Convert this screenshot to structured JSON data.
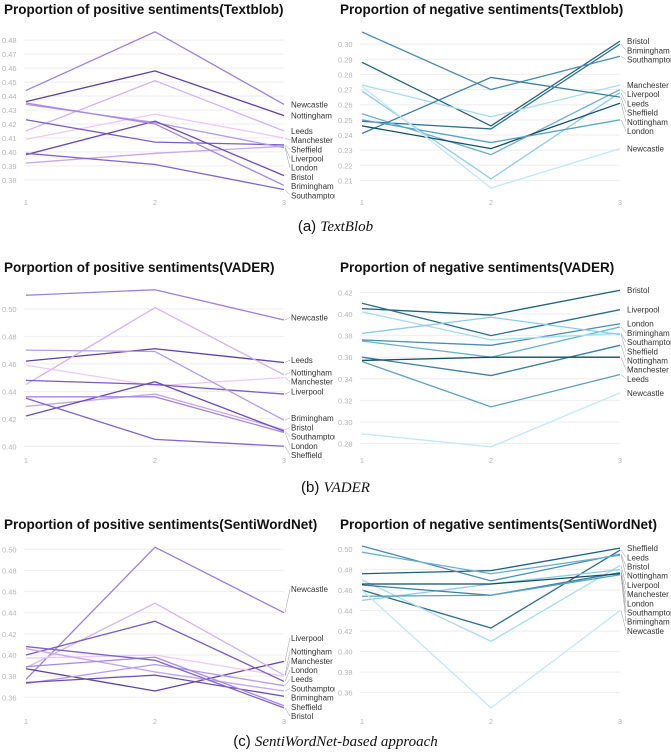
{
  "captions": [
    {
      "tag": "(a)",
      "name": "TextBlob"
    },
    {
      "tag": "(b)",
      "name": "VADER"
    },
    {
      "tag": "(c)",
      "name": "SentiWordNet-based approach"
    }
  ],
  "palettes": {
    "positive": [
      "#9b7fe0",
      "#5e3fa6",
      "#d4b2f6",
      "#efc9f5",
      "#7a5cc9",
      "#b49bee",
      "#c6a6f0",
      "#6b4bb8",
      "#a585e8",
      "#8063cf"
    ],
    "negative": [
      "#1e5f7a",
      "#2c6e8e",
      "#4a8db0",
      "#6ab0d0",
      "#a8dcf0",
      "#8ccbe8",
      "#3b7fa0",
      "#0f4d66",
      "#5aa0c0",
      "#bfe8f7"
    ]
  },
  "chart_data": [
    {
      "type": "line",
      "title": "Proportion of positive sentiments(Textblob)",
      "palette": "positive",
      "x": [
        1,
        2,
        3
      ],
      "xticks": [
        "1",
        "2",
        "3"
      ],
      "ylim": [
        0.372,
        0.488
      ],
      "yticks": [
        "0.38",
        "0.39",
        "0.40",
        "0.41",
        "0.42",
        "0.43",
        "0.44",
        "0.45",
        "0.46",
        "0.47",
        "0.48"
      ],
      "series": [
        {
          "name": "Newcastle",
          "values": [
            0.444,
            0.486,
            0.434
          ]
        },
        {
          "name": "Nottingham",
          "values": [
            0.436,
            0.458,
            0.426
          ]
        },
        {
          "name": "Leeds",
          "values": [
            0.415,
            0.451,
            0.415
          ]
        },
        {
          "name": "Manchester",
          "values": [
            0.409,
            0.427,
            0.41
          ]
        },
        {
          "name": "Sheffield",
          "values": [
            0.423,
            0.407,
            0.405
          ]
        },
        {
          "name": "London",
          "values": [
            0.434,
            0.421,
            0.403
          ]
        },
        {
          "name": "Liverpool",
          "values": [
            0.392,
            0.399,
            0.404
          ]
        },
        {
          "name": "Bristol",
          "values": [
            0.398,
            0.422,
            0.383
          ]
        },
        {
          "name": "Brimingham",
          "values": [
            0.435,
            0.42,
            0.376
          ]
        },
        {
          "name": "Southampton",
          "values": [
            0.399,
            0.391,
            0.373
          ]
        }
      ]
    },
    {
      "type": "line",
      "title": "Proportion of negative sentiments(Textblob)",
      "palette": "negative",
      "x": [
        1,
        2,
        3
      ],
      "xticks": [
        "1",
        "2",
        "3"
      ],
      "ylim": [
        0.203,
        0.31
      ],
      "yticks": [
        "0.21",
        "0.22",
        "0.23",
        "0.24",
        "0.25",
        "0.26",
        "0.27",
        "0.28",
        "0.29",
        "0.30"
      ],
      "series": [
        {
          "name": "Bristol",
          "values": [
            0.288,
            0.246,
            0.302
          ]
        },
        {
          "name": "Brimingham",
          "values": [
            0.249,
            0.244,
            0.3
          ]
        },
        {
          "name": "Southampton",
          "values": [
            0.308,
            0.27,
            0.292
          ]
        },
        {
          "name": "Liverpool",
          "values": [
            0.254,
            0.227,
            0.27
          ]
        },
        {
          "name": "Manchester",
          "values": [
            0.273,
            0.252,
            0.273
          ]
        },
        {
          "name": "Leeds",
          "values": [
            0.269,
            0.211,
            0.268
          ]
        },
        {
          "name": "Sheffield",
          "values": [
            0.241,
            0.278,
            0.265
          ]
        },
        {
          "name": "Nottingham",
          "values": [
            0.246,
            0.231,
            0.261
          ]
        },
        {
          "name": "London",
          "values": [
            0.25,
            0.235,
            0.25
          ]
        },
        {
          "name": "Newcastle",
          "values": [
            0.272,
            0.205,
            0.231
          ]
        }
      ]
    },
    {
      "type": "line",
      "title": "Porportion of positive sentiments(VADER)",
      "palette": "positive",
      "x": [
        1,
        2,
        3
      ],
      "xticks": [
        "1",
        "2",
        "3"
      ],
      "ylim": [
        0.398,
        0.516
      ],
      "yticks": [
        "0.40",
        "0.42",
        "0.44",
        "0.46",
        "0.48",
        "0.50"
      ],
      "series": [
        {
          "name": "Newcastle",
          "values": [
            0.51,
            0.514,
            0.492
          ]
        },
        {
          "name": "Leeds",
          "values": [
            0.462,
            0.471,
            0.461
          ]
        },
        {
          "name": "Nottingham",
          "values": [
            0.445,
            0.501,
            0.452
          ]
        },
        {
          "name": "Manchester",
          "values": [
            0.459,
            0.444,
            0.45
          ]
        },
        {
          "name": "Liverpool",
          "values": [
            0.448,
            0.445,
            0.438
          ]
        },
        {
          "name": "Brimingham",
          "values": [
            0.47,
            0.469,
            0.419
          ]
        },
        {
          "name": "Bristol",
          "values": [
            0.429,
            0.438,
            0.412
          ]
        },
        {
          "name": "Southampton",
          "values": [
            0.422,
            0.447,
            0.411
          ]
        },
        {
          "name": "London",
          "values": [
            0.436,
            0.436,
            0.41
          ]
        },
        {
          "name": "Sheffield",
          "values": [
            0.435,
            0.405,
            0.4
          ]
        }
      ]
    },
    {
      "type": "line",
      "title": "Proportion of negative sentiments(VADER)",
      "palette": "negative",
      "x": [
        1,
        2,
        3
      ],
      "xticks": [
        "1",
        "2",
        "3"
      ],
      "ylim": [
        0.275,
        0.425
      ],
      "yticks": [
        "0.28",
        "0.30",
        "0.32",
        "0.34",
        "0.36",
        "0.38",
        "0.40",
        "0.42"
      ],
      "series": [
        {
          "name": "Bristol",
          "values": [
            0.405,
            0.399,
            0.422
          ]
        },
        {
          "name": "Liverpool",
          "values": [
            0.41,
            0.38,
            0.404
          ]
        },
        {
          "name": "London",
          "values": [
            0.376,
            0.371,
            0.391
          ]
        },
        {
          "name": "Brimingham",
          "values": [
            0.375,
            0.36,
            0.388
          ]
        },
        {
          "name": "Southampton",
          "values": [
            0.402,
            0.376,
            0.382
          ]
        },
        {
          "name": "Sheffield",
          "values": [
            0.382,
            0.397,
            0.381
          ]
        },
        {
          "name": "Nottingham",
          "values": [
            0.36,
            0.343,
            0.371
          ]
        },
        {
          "name": "Manchester",
          "values": [
            0.357,
            0.36,
            0.36
          ]
        },
        {
          "name": "Leeds",
          "values": [
            0.356,
            0.314,
            0.344
          ]
        },
        {
          "name": "Newcastle",
          "values": [
            0.289,
            0.277,
            0.327
          ]
        }
      ]
    },
    {
      "type": "line",
      "title": "Proportion of positive sentiments(SentiWordNet)",
      "palette": "positive",
      "x": [
        1,
        2,
        3
      ],
      "xticks": [
        "1",
        "2",
        "3"
      ],
      "ylim": [
        0.348,
        0.505
      ],
      "yticks": [
        "0.36",
        "0.38",
        "0.40",
        "0.42",
        "0.44",
        "0.46",
        "0.48",
        "0.50"
      ],
      "series": [
        {
          "name": "Newcastle",
          "values": [
            0.377,
            0.502,
            0.44
          ]
        },
        {
          "name": "Liverpool",
          "values": [
            0.387,
            0.366,
            0.394
          ]
        },
        {
          "name": "Nottingham",
          "values": [
            0.388,
            0.449,
            0.381
          ]
        },
        {
          "name": "Manchester",
          "values": [
            0.397,
            0.4,
            0.38
          ]
        },
        {
          "name": "London",
          "values": [
            0.4,
            0.432,
            0.375
          ]
        },
        {
          "name": "Leeds",
          "values": [
            0.373,
            0.391,
            0.371
          ]
        },
        {
          "name": "Southampton",
          "values": [
            0.406,
            0.384,
            0.366
          ]
        },
        {
          "name": "Brimingham",
          "values": [
            0.374,
            0.381,
            0.361
          ]
        },
        {
          "name": "Sheffield",
          "values": [
            0.389,
            0.398,
            0.352
          ]
        },
        {
          "name": "Bristol",
          "values": [
            0.408,
            0.395,
            0.35
          ]
        }
      ]
    },
    {
      "type": "line",
      "title": "Proportion of negative sentiments(SentiWordNet)",
      "palette": "negative",
      "x": [
        1,
        2,
        3
      ],
      "xticks": [
        "1",
        "2",
        "3"
      ],
      "ylim": [
        0.343,
        0.505
      ],
      "yticks": [
        "0.36",
        "0.38",
        "0.40",
        "0.42",
        "0.44",
        "0.46",
        "0.48",
        "0.50"
      ],
      "series": [
        {
          "name": "Sheffield",
          "values": [
            0.476,
            0.479,
            0.501
          ]
        },
        {
          "name": "Leeds",
          "values": [
            0.46,
            0.423,
            0.499
          ]
        },
        {
          "name": "Bristol",
          "values": [
            0.503,
            0.469,
            0.495
          ]
        },
        {
          "name": "Nottingham",
          "values": [
            0.497,
            0.476,
            0.494
          ]
        },
        {
          "name": "Liverpool",
          "values": [
            0.47,
            0.41,
            0.484
          ]
        },
        {
          "name": "Manchester",
          "values": [
            0.45,
            0.466,
            0.48
          ]
        },
        {
          "name": "London",
          "values": [
            0.465,
            0.455,
            0.477
          ]
        },
        {
          "name": "Southampton",
          "values": [
            0.466,
            0.466,
            0.476
          ]
        },
        {
          "name": "Brimingham",
          "values": [
            0.454,
            0.455,
            0.475
          ]
        },
        {
          "name": "Newcastle",
          "values": [
            0.46,
            0.345,
            0.44
          ]
        }
      ]
    }
  ]
}
